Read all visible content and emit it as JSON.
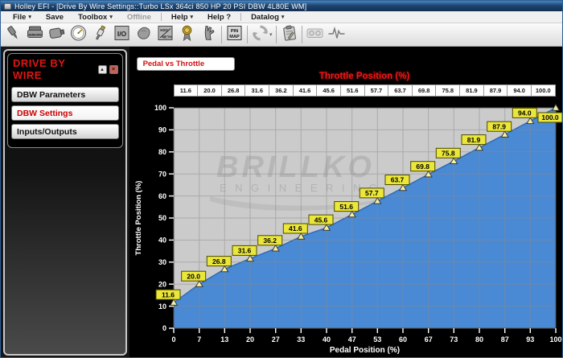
{
  "window": {
    "title": "Holley EFI - [Drive By Wire Settings::Turbo LSx 364ci 850 HP 20 PSI DBW 4L80E WM]"
  },
  "menu": {
    "items": [
      {
        "label": "File",
        "dropdown": true
      },
      {
        "label": "Save"
      },
      {
        "label": "Toolbox",
        "dropdown": true
      },
      {
        "label": "Offline",
        "disabled": true
      },
      {
        "sep": true
      },
      {
        "label": "Help",
        "dropdown": true
      },
      {
        "label": "Help ?"
      },
      {
        "sep": true
      },
      {
        "label": "Datalog",
        "dropdown": true
      }
    ],
    "caret_glyph": "▾"
  },
  "toolbar": {
    "icons": [
      {
        "name": "fuel-injector-icon"
      },
      {
        "name": "sensors-icon",
        "label": "SENSORS"
      },
      {
        "name": "map-sensor-icon"
      },
      {
        "name": "gauge-icon"
      },
      {
        "name": "spark-plug-icon"
      },
      {
        "name": "io-icon",
        "label": "I/O"
      },
      {
        "name": "cylinder-head-icon"
      },
      {
        "name": "water-meth-icon",
        "label": "H2O METH"
      },
      {
        "name": "award-icon"
      },
      {
        "name": "glove-icon"
      },
      {
        "sep": true
      },
      {
        "name": "pin-map-icon",
        "label": "PIN MAP"
      },
      {
        "sep": true
      },
      {
        "name": "sync-icon",
        "dropdown": true
      },
      {
        "sep": true
      },
      {
        "name": "notes-icon"
      },
      {
        "sep": true
      },
      {
        "name": "playback-icon",
        "disabled": true
      },
      {
        "name": "pulse-icon"
      }
    ]
  },
  "sidebar": {
    "title": "DRIVE BY WIRE",
    "pin_glyph": "▴",
    "close_glyph": "×",
    "items": [
      {
        "name": "sidebar-item-dbw-parameters",
        "label": "DBW Parameters",
        "active": false
      },
      {
        "name": "sidebar-item-dbw-settings",
        "label": "DBW Settings",
        "active": true
      },
      {
        "name": "sidebar-item-inputs-outputs",
        "label": "Inputs/Outputs",
        "active": false
      }
    ]
  },
  "chart_tab": "Pedal vs Throttle",
  "chart_data": {
    "type": "area",
    "title": "Throttle Position (%)",
    "xlabel": "Pedal Position (%)",
    "ylabel": "Throttle Position (%)",
    "x": [
      0,
      7,
      13,
      20,
      27,
      33,
      40,
      47,
      53,
      60,
      67,
      73,
      80,
      87,
      93,
      100
    ],
    "x_labels": [
      "0",
      "7",
      "13",
      "20",
      "27",
      "33",
      "40",
      "47",
      "53",
      "60",
      "67",
      "73",
      "80",
      "87",
      "93",
      "100"
    ],
    "values": [
      11.6,
      20.0,
      26.8,
      31.6,
      36.2,
      41.6,
      45.6,
      51.6,
      57.7,
      63.7,
      69.8,
      75.8,
      81.9,
      87.9,
      94.0,
      100.0
    ],
    "value_labels": [
      "11.6",
      "20.0",
      "26.8",
      "31.6",
      "36.2",
      "41.6",
      "45.6",
      "51.6",
      "57.7",
      "63.7",
      "69.8",
      "75.8",
      "81.9",
      "87.9",
      "94.0",
      "100.0"
    ],
    "xlim": [
      0,
      100
    ],
    "ylim": [
      0,
      100
    ],
    "ytick_step": 10,
    "grid": true,
    "legend": false,
    "point_marker": "triangle",
    "watermark_line1": "BRILLKO",
    "watermark_line2": "ENGINEERING",
    "colors": {
      "area": "#4a89d4",
      "line": "#2f6cb5",
      "plot_bg": "#cbcbcb",
      "grid": "#8a8a8a",
      "marker": "#f5f2a0",
      "label_bg": "#ebe63a",
      "title": "#f01515",
      "axis_text": "#ffffff"
    }
  }
}
